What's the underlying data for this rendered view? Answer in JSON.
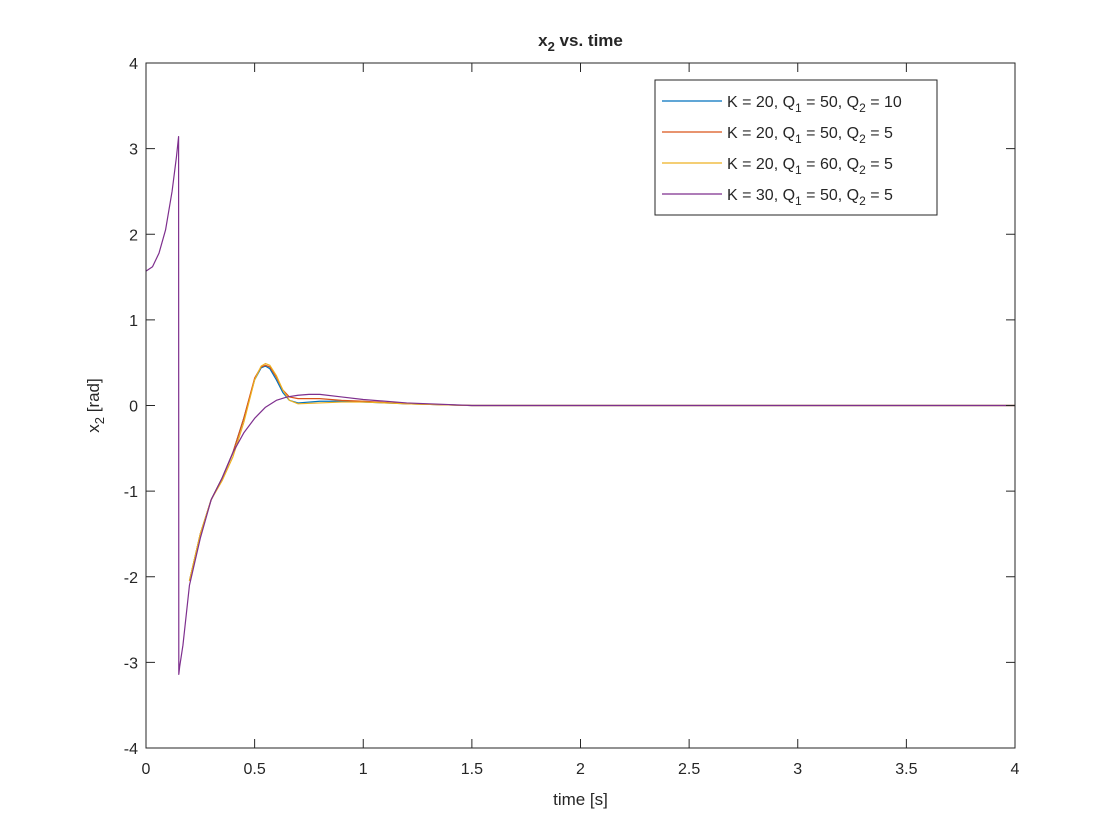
{
  "chart_data": {
    "type": "line",
    "title": {
      "main": "x",
      "sub": "2",
      "rest": " vs. time"
    },
    "xlabel": "time [s]",
    "ylabel": {
      "main": "x",
      "sub": "2",
      "rest": " [rad]"
    },
    "xlim": [
      0,
      4
    ],
    "ylim": [
      -4,
      4
    ],
    "xticks": [
      0,
      0.5,
      1,
      1.5,
      2,
      2.5,
      3,
      3.5,
      4
    ],
    "xtick_labels": [
      "0",
      "0.5",
      "1",
      "1.5",
      "2",
      "2.5",
      "3",
      "3.5",
      "4"
    ],
    "yticks": [
      -4,
      -3,
      -2,
      -1,
      0,
      1,
      2,
      3,
      4
    ],
    "ytick_labels": [
      "-4",
      "-3",
      "-2",
      "-1",
      "0",
      "1",
      "2",
      "3",
      "4"
    ],
    "grid": false,
    "legend_position": "top-right",
    "series": [
      {
        "legend": {
          "a": "K = 20, Q",
          "a_sub": "1",
          "b": " = 50, Q",
          "b_sub": "2",
          "c": " = 10"
        },
        "color": "#0072BD",
        "x": [
          0.2,
          0.25,
          0.3,
          0.35,
          0.4,
          0.45,
          0.5,
          0.53,
          0.55,
          0.57,
          0.6,
          0.63,
          0.66,
          0.7,
          0.8,
          0.9,
          1.0,
          1.2,
          1.5,
          2.0,
          4.0
        ],
        "y": [
          -2.05,
          -1.5,
          -1.1,
          -0.85,
          -0.55,
          -0.15,
          0.3,
          0.44,
          0.46,
          0.43,
          0.3,
          0.15,
          0.06,
          0.03,
          0.05,
          0.05,
          0.04,
          0.02,
          0.0,
          0.0,
          0.0
        ]
      },
      {
        "legend": {
          "a": "K = 20, Q",
          "a_sub": "1",
          "b": " = 50, Q",
          "b_sub": "2",
          "c": " = 5"
        },
        "color": "#D95319",
        "x": [
          0.2,
          0.25,
          0.3,
          0.35,
          0.4,
          0.45,
          0.5,
          0.53,
          0.55,
          0.57,
          0.6,
          0.63,
          0.66,
          0.7,
          0.8,
          0.9,
          1.0,
          1.2,
          1.5,
          2.0,
          4.0
        ],
        "y": [
          -2.05,
          -1.5,
          -1.1,
          -0.85,
          -0.55,
          -0.15,
          0.32,
          0.45,
          0.47,
          0.45,
          0.33,
          0.18,
          0.1,
          0.08,
          0.08,
          0.06,
          0.05,
          0.02,
          0.0,
          0.0,
          0.0
        ]
      },
      {
        "legend": {
          "a": "K = 20, Q",
          "a_sub": "1",
          "b": " = 60, Q",
          "b_sub": "2",
          "c": " = 5"
        },
        "color": "#EDB120",
        "x": [
          0.2,
          0.25,
          0.3,
          0.35,
          0.4,
          0.45,
          0.5,
          0.53,
          0.55,
          0.57,
          0.6,
          0.63,
          0.66,
          0.7,
          0.8,
          0.9,
          1.0,
          1.2,
          1.5,
          2.0,
          4.0
        ],
        "y": [
          -2.05,
          -1.5,
          -1.1,
          -0.88,
          -0.6,
          -0.2,
          0.3,
          0.46,
          0.49,
          0.47,
          0.35,
          0.18,
          0.06,
          0.02,
          0.03,
          0.04,
          0.04,
          0.02,
          0.0,
          0.0,
          0.0
        ]
      },
      {
        "legend": {
          "a": "K = 30, Q",
          "a_sub": "1",
          "b": " = 50, Q",
          "b_sub": "2",
          "c": " = 5"
        },
        "color": "#7E2F8E",
        "x": [
          0.0,
          0.03,
          0.06,
          0.09,
          0.12,
          0.14,
          0.15,
          0.151,
          0.155,
          0.17,
          0.2,
          0.25,
          0.3,
          0.35,
          0.4,
          0.45,
          0.5,
          0.55,
          0.6,
          0.65,
          0.7,
          0.75,
          0.8,
          0.9,
          1.0,
          1.2,
          1.5,
          2.0,
          4.0
        ],
        "y": [
          1.57,
          1.62,
          1.78,
          2.05,
          2.5,
          2.9,
          3.14,
          -3.14,
          -3.05,
          -2.8,
          -2.1,
          -1.55,
          -1.1,
          -0.85,
          -0.55,
          -0.32,
          -0.15,
          -0.02,
          0.06,
          0.1,
          0.12,
          0.13,
          0.13,
          0.1,
          0.07,
          0.03,
          0.0,
          0.0,
          0.0
        ]
      }
    ]
  }
}
